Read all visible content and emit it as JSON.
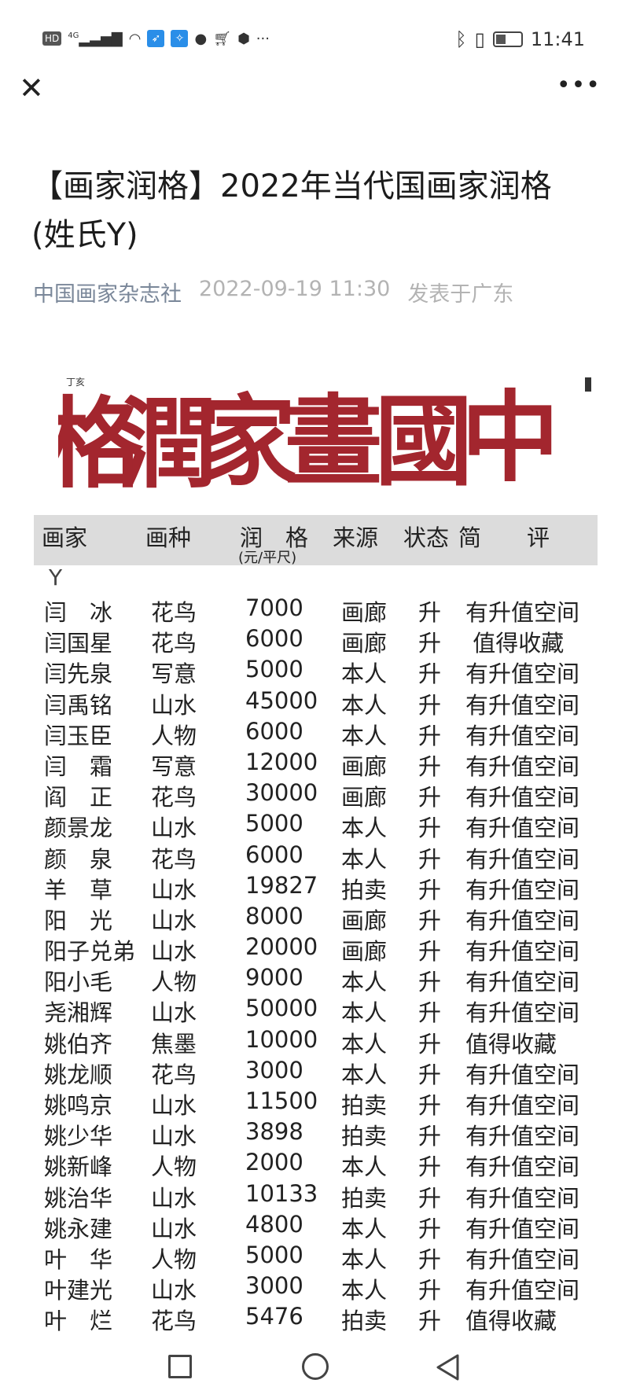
{
  "status_bar": {
    "left_icons": [
      "hd-icon",
      "4g-signal-icon",
      "wifi-icon",
      "app-icon",
      "app-icon",
      "browser-icon",
      "cart-icon",
      "shield-icon",
      "more-dots-icon"
    ],
    "hd": "HD",
    "network": "4G",
    "time": "11:41"
  },
  "nav": {
    "close_icon": "close-icon",
    "more_icon": "more-icon"
  },
  "article": {
    "title": "【画家润格】2022年当代国画家润格 (姓氏Y)",
    "author": "中国画家杂志社",
    "date": "2022-09-19 11:30",
    "location": "发表于广东"
  },
  "banner": {
    "seal_text": "中國畫家潤格"
  },
  "table": {
    "headers": [
      "画家",
      "画种",
      "润　格",
      "来源",
      "状态",
      "简　　评"
    ],
    "price_unit": "(元/平尺)",
    "group_letter": "Y",
    "rows": [
      [
        "闫　冰",
        "花鸟",
        "7000",
        "画廊",
        "升",
        "有升值空间"
      ],
      [
        "闫国星",
        "花鸟",
        "6000",
        "画廊",
        "升",
        " 值得收藏"
      ],
      [
        "闫先泉",
        "写意",
        "5000",
        "本人",
        "升",
        "有升值空间"
      ],
      [
        "闫禹铭",
        "山水",
        "45000",
        "本人",
        "升",
        "有升值空间"
      ],
      [
        "闫玉臣",
        "人物",
        "6000",
        "本人",
        "升",
        "有升值空间"
      ],
      [
        "闫　霜",
        "写意",
        "12000",
        "画廊",
        "升",
        "有升值空间"
      ],
      [
        "阎　正",
        "花鸟",
        "30000",
        "画廊",
        "升",
        "有升值空间"
      ],
      [
        "颜景龙",
        "山水",
        "5000",
        "本人",
        "升",
        "有升值空间"
      ],
      [
        "颜　泉",
        "花鸟",
        "6000",
        "本人",
        "升",
        "有升值空间"
      ],
      [
        "羊　草",
        "山水",
        "19827",
        "拍卖",
        "升",
        "有升值空间"
      ],
      [
        "阳　光",
        "山水",
        "8000",
        "画廊",
        "升",
        "有升值空间"
      ],
      [
        "阳子兑弟",
        "山水",
        "20000",
        "画廊",
        "升",
        "有升值空间"
      ],
      [
        "阳小毛",
        "人物",
        "9000",
        "本人",
        "升",
        "有升值空间"
      ],
      [
        "尧湘辉",
        "山水",
        "50000",
        "本人",
        "升",
        "有升值空间"
      ],
      [
        "姚伯齐",
        "焦墨",
        "10000",
        "本人",
        "升",
        "值得收藏"
      ],
      [
        "姚龙顺",
        "花鸟",
        "3000",
        "本人",
        "升",
        "有升值空间"
      ],
      [
        "姚鸣京",
        "山水",
        "11500",
        "拍卖",
        "升",
        "有升值空间"
      ],
      [
        "姚少华",
        "山水",
        "3898",
        "拍卖",
        "升",
        "有升值空间"
      ],
      [
        "姚新峰",
        "人物",
        "2000",
        "本人",
        "升",
        "有升值空间"
      ],
      [
        "姚治华",
        "山水",
        "10133",
        "拍卖",
        "升",
        "有升值空间"
      ],
      [
        "姚永建",
        "山水",
        "4800",
        "本人",
        "升",
        "有升值空间"
      ],
      [
        "叶　华",
        "人物",
        "5000",
        "本人",
        "升",
        "有升值空间"
      ],
      [
        "叶建光",
        "山水",
        "3000",
        "本人",
        "升",
        "有升值空间"
      ],
      [
        "叶　烂",
        "花鸟",
        "5476",
        "拍卖",
        "升",
        "值得收藏"
      ]
    ]
  },
  "colors": {
    "seal_red": "#a3262e",
    "header_bg": "#dcdcdc",
    "meta_author": "#7a8799"
  }
}
